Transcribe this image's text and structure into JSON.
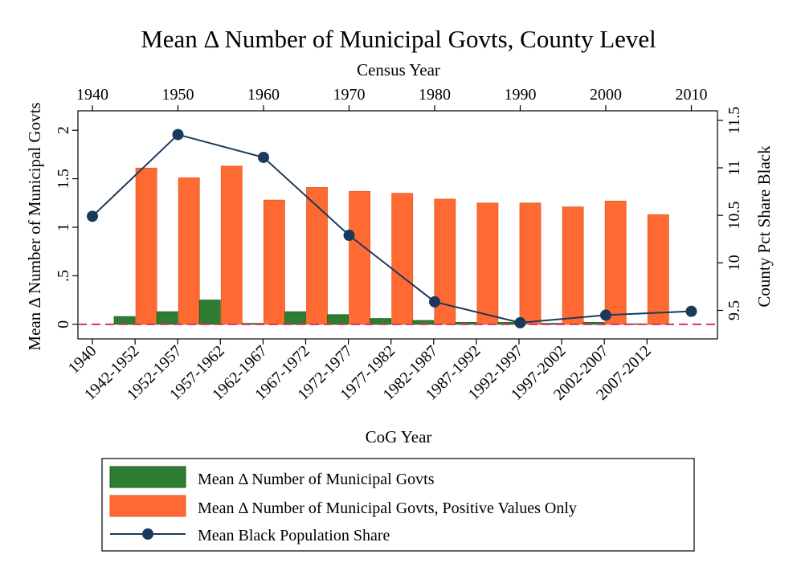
{
  "chart_data": {
    "type": "bar",
    "title": "Mean Δ Number of Municipal Govts, County Level",
    "xlabel": "CoG Year",
    "x2label": "Census Year",
    "ylabel": "Mean Δ Number of Municipal Govts",
    "y2label": "County Pct Share Black",
    "categories": [
      "1940",
      "1942-1952",
      "1952-1957",
      "1957-1962",
      "1962-1967",
      "1967-1972",
      "1972-1977",
      "1977-1982",
      "1982-1987",
      "1987-1992",
      "1992-1997",
      "1997-2002",
      "2002-2007",
      "2007-2012"
    ],
    "ylim": [
      -0.15,
      2.2
    ],
    "yticks": [
      "0",
      ".5",
      "1",
      "1.5",
      "2"
    ],
    "ytick_values": [
      0,
      0.5,
      1,
      1.5,
      2
    ],
    "y2lim": [
      9.2,
      11.6
    ],
    "y2ticks": [
      "9.5",
      "10",
      "10.5",
      "11",
      "11.5"
    ],
    "y2tick_values": [
      9.5,
      10,
      10.5,
      11,
      11.5
    ],
    "census_ticks": [
      "1940",
      "1950",
      "1960",
      "1970",
      "1980",
      "1990",
      "2000",
      "2010"
    ],
    "series": [
      {
        "name": "Mean Δ Number of Municipal Govts",
        "type": "bar",
        "color": "#2e7d32",
        "values": [
          null,
          0.08,
          0.13,
          0.25,
          0.01,
          0.13,
          0.1,
          0.06,
          0.04,
          0.02,
          0.02,
          0.01,
          0.02,
          0.005
        ]
      },
      {
        "name": "Mean Δ Number of Municipal Govts, Positive Values Only",
        "type": "bar",
        "color": "#ff6a33",
        "values": [
          null,
          1.61,
          1.51,
          1.63,
          1.28,
          1.41,
          1.37,
          1.35,
          1.29,
          1.25,
          1.25,
          1.21,
          1.27,
          1.13
        ]
      },
      {
        "name": "Mean Black Population Share",
        "type": "line",
        "axis": "right",
        "color": "#1a3a5c",
        "x": [
          "1940",
          "1950",
          "1960",
          "1970",
          "1980",
          "1990",
          "2000",
          "2010"
        ],
        "values": [
          10.49,
          11.35,
          11.11,
          10.29,
          9.59,
          9.37,
          9.45,
          9.49
        ]
      }
    ],
    "reference_line": {
      "y": 0,
      "style": "dashed",
      "color": "#d6325f"
    },
    "legend": {
      "placement": "bottom"
    }
  }
}
